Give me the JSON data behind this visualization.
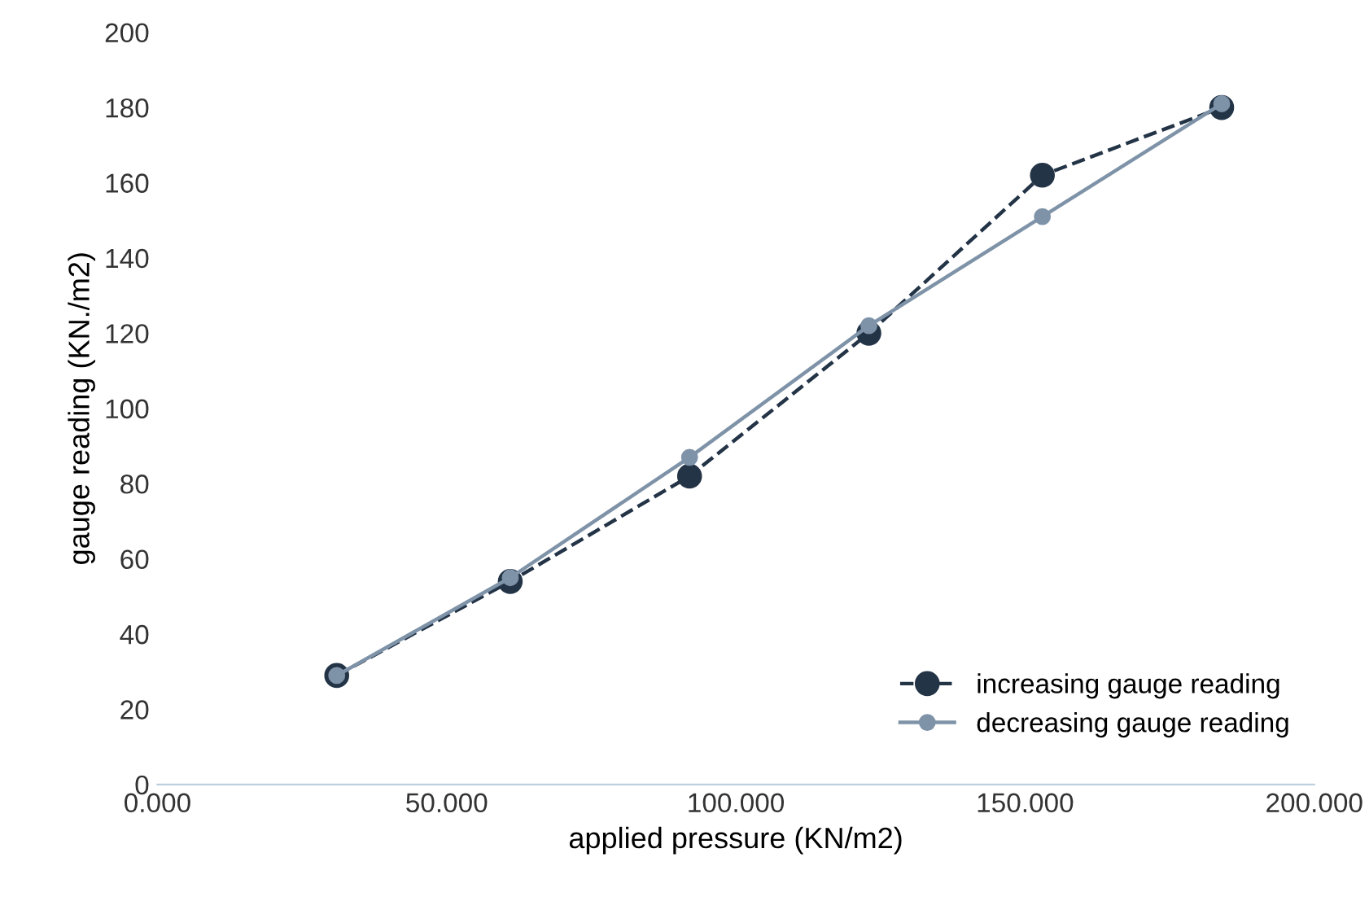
{
  "chart_data": {
    "type": "line",
    "xlabel": "applied pressure (KN/m2)",
    "ylabel": "gauge reading (KN./m2)",
    "xlim": [
      0,
      200
    ],
    "xticks": [
      {
        "value": 0,
        "label": "0.000"
      },
      {
        "value": 50,
        "label": "50.000"
      },
      {
        "value": 100,
        "label": "100.000"
      },
      {
        "value": 150,
        "label": "150.000"
      },
      {
        "value": 200,
        "label": "200.000"
      }
    ],
    "ylim": [
      0,
      200
    ],
    "yticks": [
      0,
      20,
      40,
      60,
      80,
      100,
      120,
      140,
      160,
      180,
      200
    ],
    "grid": false,
    "legend": "bottom right",
    "marker": "circle",
    "series": [
      {
        "name": "increasing gauge reading",
        "color": "#243447",
        "line_style": "dashed",
        "x": [
          31,
          61,
          92,
          123,
          153,
          184
        ],
        "values": [
          29,
          54,
          82,
          120,
          162,
          180
        ]
      },
      {
        "name": "decreasing gauge reading",
        "color": "#7f93a8",
        "line_style": "solid",
        "x": [
          31,
          61,
          92,
          123,
          153,
          184
        ],
        "values": [
          29,
          55,
          87,
          122,
          151,
          181
        ]
      }
    ]
  }
}
